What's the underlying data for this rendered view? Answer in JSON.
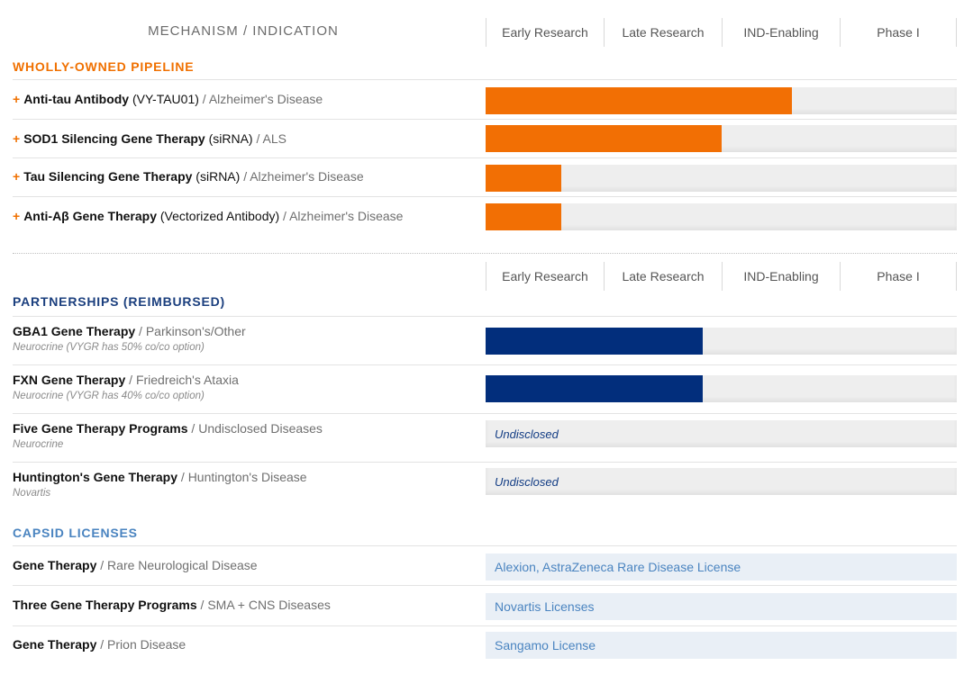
{
  "header": {
    "mechanism_label": "MECHANISM / INDICATION",
    "columns": [
      "Early Research",
      "Late Research",
      "IND-Enabling",
      "Phase I"
    ]
  },
  "colors": {
    "orange": "#f26f04",
    "navy": "#022e7c",
    "license_text": "#4a84c0",
    "partnership_heading": "#1b3f7e",
    "license_heading": "#4a84c0"
  },
  "wholly_owned": {
    "heading": "WHOLLY-OWNED PIPELINE",
    "rows": [
      {
        "bullet": "+",
        "name": "Anti-tau Antibody",
        "detail": " (VY-TAU01)",
        "sep": " / ",
        "indication": "Alzheimer's Disease",
        "progress": 0.65
      },
      {
        "bullet": "+",
        "name": "SOD1 Silencing Gene Therapy",
        "detail": " (siRNA)",
        "sep": " / ",
        "indication": "ALS",
        "progress": 0.5
      },
      {
        "bullet": "+",
        "name": "Tau Silencing Gene Therapy",
        "detail": " (siRNA)",
        "sep": " / ",
        "indication": "Alzheimer's Disease",
        "progress": 0.16
      },
      {
        "bullet": "+",
        "name": "Anti-Aβ Gene Therapy",
        "detail": " (Vectorized Antibody)",
        "sep": " / ",
        "indication": "Alzheimer's Disease",
        "progress": 0.16
      }
    ]
  },
  "partnerships": {
    "heading": "PARTNERSHIPS (REIMBURSED)",
    "rows": [
      {
        "name": "GBA1 Gene Therapy",
        "sep": " / ",
        "indication": "Parkinson's/Other",
        "partner": "Neurocrine (VYGR has 50% co/co option)",
        "progress": 0.46
      },
      {
        "name": "FXN Gene Therapy",
        "sep": " / ",
        "indication": "Friedreich's Ataxia",
        "partner": "Neurocrine (VYGR has 40% co/co option)",
        "progress": 0.46
      },
      {
        "name": "Five Gene Therapy Programs",
        "sep": " / ",
        "indication": "Undisclosed Diseases",
        "partner": "Neurocrine",
        "status": "Undisclosed"
      },
      {
        "name": "Huntington's Gene Therapy",
        "sep": " / ",
        "indication": "Huntington's Disease",
        "partner": "Novartis",
        "status": "Undisclosed"
      }
    ]
  },
  "capsid": {
    "heading": "CAPSID LICENSES",
    "rows": [
      {
        "name": "Gene Therapy",
        "sep": " / ",
        "indication": "Rare Neurological Disease",
        "license": "Alexion, AstraZeneca Rare Disease License"
      },
      {
        "name": "Three Gene Therapy Programs",
        "sep": " / ",
        "indication": "SMA + CNS Diseases",
        "license": "Novartis Licenses"
      },
      {
        "name": "Gene Therapy",
        "sep": " / ",
        "indication": "Prion Disease",
        "license": "Sangamo License"
      }
    ]
  }
}
